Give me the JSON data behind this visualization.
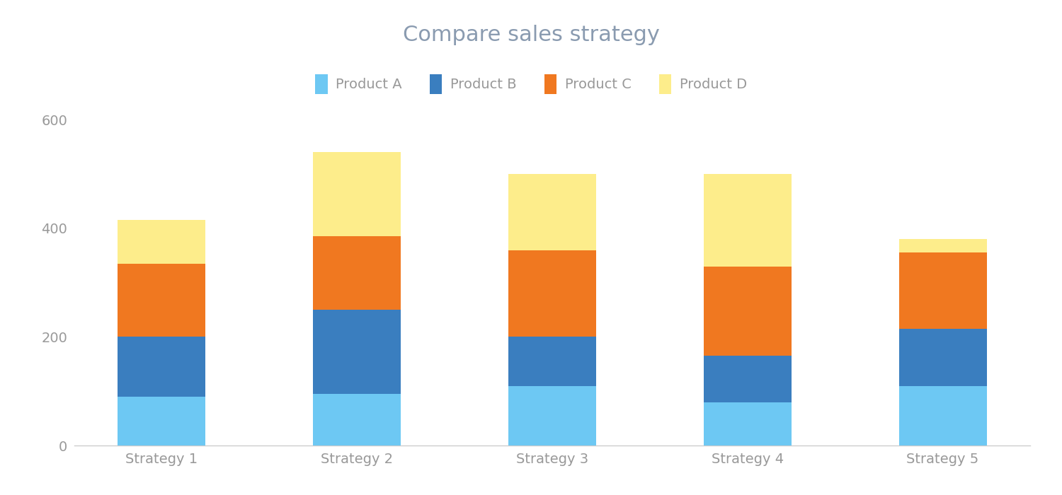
{
  "title": "Compare sales strategy",
  "title_fontsize": 22,
  "title_color": "#8A9BB0",
  "categories": [
    "Strategy 1",
    "Strategy 2",
    "Strategy 3",
    "Strategy 4",
    "Strategy 5"
  ],
  "products": [
    "Product A",
    "Product B",
    "Product C",
    "Product D"
  ],
  "values": {
    "Product A": [
      90,
      95,
      110,
      80,
      110
    ],
    "Product B": [
      110,
      155,
      90,
      85,
      105
    ],
    "Product C": [
      135,
      135,
      160,
      165,
      140
    ],
    "Product D": [
      80,
      155,
      140,
      170,
      25
    ]
  },
  "colors": {
    "Product A": "#6DC8F3",
    "Product B": "#3A7EBF",
    "Product C": "#F07820",
    "Product D": "#FDED8B"
  },
  "ylim": [
    0,
    620
  ],
  "yticks": [
    0,
    200,
    400,
    600
  ],
  "bar_width": 0.45,
  "legend_fontsize": 14,
  "tick_fontsize": 14,
  "tick_color": "#999999",
  "background_color": "#ffffff"
}
